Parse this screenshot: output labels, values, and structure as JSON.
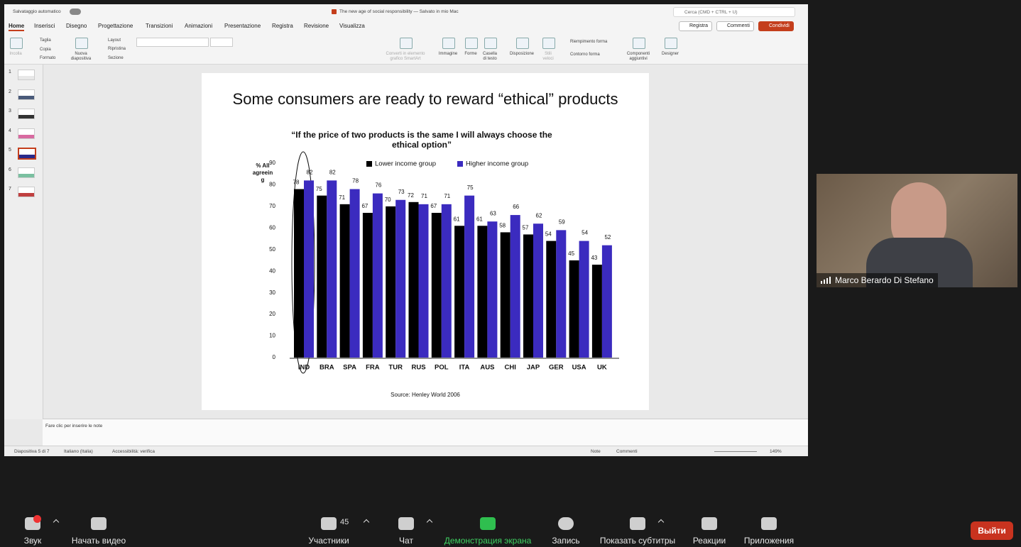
{
  "ppt": {
    "autosave": "Salvataggio automatico",
    "doc_title": "The new age of social responsibility — Salvato in mio Mac",
    "search": "Cerca (CMD + CTRL + U)",
    "tabs": [
      "Home",
      "Inserisci",
      "Disegno",
      "Progettazione",
      "Transizioni",
      "Animazioni",
      "Presentazione",
      "Registra",
      "Revisione",
      "Visualizza"
    ],
    "actions": [
      "Registra",
      "Commenti",
      "Condividi"
    ],
    "ribbon": [
      "Incolla",
      "Taglia",
      "Copia",
      "Formato",
      "Nuova diapositiva",
      "Layout",
      "Ripristina",
      "Sezione",
      "Converti in elemento grafico SmartArt",
      "Immagine",
      "Forme",
      "Casella di testo",
      "Disposizione",
      "Stili veloci",
      "Riempimento forma",
      "Contorno forma",
      "Componenti aggiuntivi",
      "Designer"
    ],
    "thumbnails": [
      "1",
      "2",
      "3",
      "4",
      "5",
      "6",
      "7"
    ],
    "notes": "Fare clic per inserire le note",
    "status": [
      "Diapositiva 5 di 7",
      "Italiano (Italia)",
      "Accessibilità: verifica",
      "Note",
      "Commenti",
      "149%"
    ]
  },
  "slide": {
    "title": "Some consumers are ready to reward “ethical” products"
  },
  "chart_data": {
    "type": "bar",
    "title": "“If the price of two products is the same I will always choose the ethical option”",
    "y_label": "% All agreeing",
    "categories": [
      "IND",
      "BRA",
      "SPA",
      "FRA",
      "TUR",
      "RUS",
      "POL",
      "ITA",
      "AUS",
      "CHI",
      "JAP",
      "GER",
      "USA",
      "UK"
    ],
    "series": [
      {
        "name": "Lower income group",
        "color": "#000000",
        "values": [
          78,
          75,
          71,
          67,
          70,
          72,
          67,
          61,
          61,
          58,
          57,
          54,
          45,
          43
        ]
      },
      {
        "name": "Higher income group",
        "color": "#3b2bbf",
        "values": [
          82,
          82,
          78,
          76,
          73,
          71,
          71,
          75,
          63,
          66,
          62,
          59,
          54,
          52
        ]
      }
    ],
    "ylim": [
      0,
      90
    ],
    "yticks": [
      0,
      10,
      20,
      30,
      40,
      50,
      60,
      70,
      80,
      90
    ],
    "grid": false,
    "legend": "top",
    "source": "Source: Henley World 2006"
  },
  "zoom": {
    "speaker": "Marco Berardo Di Stefano",
    "participants_count": "45",
    "toolbar": [
      "Звук",
      "Начать видео",
      "Участники",
      "Чат",
      "Демонстрация экрана",
      "Запись",
      "Показать субтитры",
      "Реакции",
      "Приложения"
    ],
    "leave": "Выйти"
  }
}
